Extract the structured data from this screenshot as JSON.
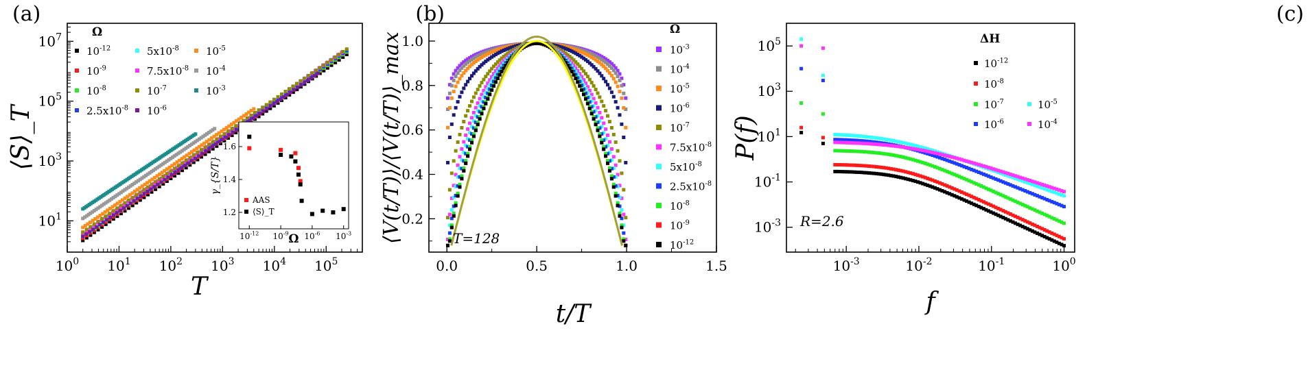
{
  "chart_data": [
    {
      "panel": "(a)",
      "type": "scatter",
      "xscale": "log",
      "yscale": "log",
      "xlabel": "T",
      "ylabel": "⟨S⟩_T",
      "xlim": [
        1,
        500000
      ],
      "ylim": [
        0.9,
        40000000
      ],
      "xticks": [
        1,
        10,
        100,
        1000,
        10000,
        100000
      ],
      "xtick_labels": [
        {
          "b": "10",
          "e": "0"
        },
        {
          "b": "10",
          "e": "1"
        },
        {
          "b": "10",
          "e": "2"
        },
        {
          "b": "10",
          "e": "3"
        },
        {
          "b": "10",
          "e": "4"
        },
        {
          "b": "10",
          "e": "5"
        }
      ],
      "yticks": [
        10,
        1000,
        100000,
        10000000
      ],
      "ytick_labels": [
        {
          "b": "10",
          "e": "1"
        },
        {
          "b": "10",
          "e": "3"
        },
        {
          "b": "10",
          "e": "5"
        },
        {
          "b": "10",
          "e": "7"
        }
      ],
      "legend_title": "Ω",
      "legend_position": "top-left",
      "series": [
        {
          "name": "10^-12",
          "label": {
            "b": "10",
            "e": "-12"
          },
          "color": "#000000",
          "x0": 2,
          "y0": 2.2,
          "slope": 1.22,
          "x_end": 250000
        },
        {
          "name": "10^-9",
          "label": {
            "b": "10",
            "e": "-9"
          },
          "color": "#ff1a1a",
          "x0": 2,
          "y0": 2.6,
          "slope": 1.22,
          "x_end": 250000
        },
        {
          "name": "10^-8",
          "label": {
            "b": "10",
            "e": "-8"
          },
          "color": "#22ee22",
          "x0": 2,
          "y0": 3.0,
          "slope": 1.21,
          "x_end": 250000
        },
        {
          "name": "2.5x10^-8",
          "label": {
            "b": "2.5x10",
            "e": "-8"
          },
          "color": "#1a3cff",
          "x0": 2,
          "y0": 3.3,
          "slope": 1.21,
          "x_end": 250000
        },
        {
          "name": "5x10^-8",
          "label": {
            "b": "5x10",
            "e": "-8"
          },
          "color": "#33ffff",
          "x0": 2,
          "y0": 3.5,
          "slope": 1.22,
          "x_end": 200000
        },
        {
          "name": "7.5x10^-8",
          "label": {
            "b": "7.5x10",
            "e": "-8"
          },
          "color": "#ff33ff",
          "x0": 2,
          "y0": 3.8,
          "slope": 1.21,
          "x_end": 200000
        },
        {
          "name": "10^-7",
          "label": {
            "b": "10",
            "e": "-7"
          },
          "color": "#8c8c00",
          "x0": 2,
          "y0": 4.2,
          "slope": 1.2,
          "x_end": 250000
        },
        {
          "name": "10^-6",
          "label": {
            "b": "10",
            "e": "-6"
          },
          "color": "#7a1a9a",
          "x0": 2,
          "y0": 3.0,
          "slope": 1.2,
          "x_end": 70000
        },
        {
          "name": "10^-5",
          "label": {
            "b": "10",
            "e": "-5"
          },
          "color": "#ff8c1a",
          "x0": 2,
          "y0": 6.0,
          "slope": 1.2,
          "x_end": 4000
        },
        {
          "name": "10^-4",
          "label": {
            "b": "10",
            "e": "-4"
          },
          "color": "#999999",
          "x0": 2,
          "y0": 12.0,
          "slope": 1.18,
          "x_end": 700
        },
        {
          "name": "10^-3",
          "label": {
            "b": "10",
            "e": "-3"
          },
          "color": "#1a8c8c",
          "x0": 2,
          "y0": 25.0,
          "slope": 1.15,
          "x_end": 300
        }
      ],
      "inset": {
        "xlabel": "Ω",
        "ylabel": "γ_{S/T}",
        "xscale": "log",
        "xlim": [
          1e-13,
          0.003
        ],
        "ylim": [
          1.1,
          1.75
        ],
        "xticks": [
          1e-12,
          1e-09,
          1e-06,
          0.001
        ],
        "xtick_labels": [
          {
            "b": "10",
            "e": "-12"
          },
          {
            "b": "10",
            "e": "-9"
          },
          {
            "b": "10",
            "e": "-6"
          },
          {
            "b": "10",
            "e": "-3"
          }
        ],
        "yticks": [
          1.2,
          1.4,
          1.6
        ],
        "ytick_labels": [
          "1.2",
          "1.4",
          "1.6"
        ],
        "series": [
          {
            "name": "AAS",
            "color": "#ff1a1a",
            "x": [
              1e-12,
              1e-09,
              2.5e-08,
              5e-08,
              7.5e-08
            ],
            "y": [
              1.59,
              1.58,
              1.56,
              1.47,
              1.39
            ]
          },
          {
            "name": "⟨S⟩_T",
            "color": "#000000",
            "x": [
              1e-12,
              1e-09,
              1e-08,
              2.5e-08,
              5e-08,
              7.5e-08,
              1e-07,
              1e-06,
              1e-05,
              0.0001,
              0.001
            ],
            "y": [
              1.66,
              1.55,
              1.54,
              1.51,
              1.43,
              1.37,
              1.27,
              1.19,
              1.21,
              1.2,
              1.22
            ]
          }
        ]
      }
    },
    {
      "panel": "(b)",
      "type": "scatter",
      "xlabel": "t/T",
      "ylabel": "⟨V(t/T)⟩/⟨V(t/T)⟩_max",
      "xlim": [
        -0.1,
        1.5
      ],
      "ylim": [
        0.05,
        1.08
      ],
      "xticks": [
        0,
        0.5,
        1,
        1.5
      ],
      "xtick_labels": [
        "0.0",
        "0.5",
        "1.0",
        "1.5"
      ],
      "yticks": [
        0.2,
        0.4,
        0.6,
        0.8,
        1.0
      ],
      "ytick_labels": [
        "0.2",
        "0.4",
        "0.6",
        "0.8",
        "1.0"
      ],
      "annotation": "T=128",
      "legend_title": "Ω",
      "legend_position": "right",
      "series": [
        {
          "name": "10^-3",
          "label": {
            "b": "10",
            "e": "-3"
          },
          "color": "#9a33ff",
          "flatness": 18
        },
        {
          "name": "10^-4",
          "label": {
            "b": "10",
            "e": "-4"
          },
          "color": "#8c8c8c",
          "flatness": 14
        },
        {
          "name": "10^-5",
          "label": {
            "b": "10",
            "e": "-5"
          },
          "color": "#ff8c1a",
          "flatness": 10
        },
        {
          "name": "10^-6",
          "label": {
            "b": "10",
            "e": "-6"
          },
          "color": "#1a1a7a",
          "flatness": 6
        },
        {
          "name": "10^-7",
          "label": {
            "b": "10",
            "e": "-7"
          },
          "color": "#8c8c00",
          "flatness": 3
        },
        {
          "name": "7.5x10^-8",
          "label": {
            "b": "7.5x10",
            "e": "-8"
          },
          "color": "#ff33ff",
          "flatness": 2.2
        },
        {
          "name": "5x10^-8",
          "label": {
            "b": "5x10",
            "e": "-8"
          },
          "color": "#33ffff",
          "flatness": 1.9
        },
        {
          "name": "2.5x10^-8",
          "label": {
            "b": "2.5x10",
            "e": "-8"
          },
          "color": "#1a3cff",
          "flatness": 1.7
        },
        {
          "name": "10^-8",
          "label": {
            "b": "10",
            "e": "-8"
          },
          "color": "#22ee22",
          "flatness": 1.55
        },
        {
          "name": "10^-9",
          "label": {
            "b": "10",
            "e": "-9"
          },
          "color": "#ff1a1a",
          "flatness": 1.5
        },
        {
          "name": "10^-12",
          "label": {
            "b": "10",
            "e": "-12"
          },
          "color": "#000000",
          "flatness": 1.5
        }
      ],
      "fit_curves": [
        {
          "name": "fit-yellow",
          "color": "#ffff00",
          "peak": 1.0
        },
        {
          "name": "fit-olive",
          "color": "#a0a040",
          "peak": 1.02
        }
      ]
    },
    {
      "panel": "(c)",
      "type": "scatter",
      "xscale": "log",
      "yscale": "log",
      "xlabel": "f",
      "ylabel": "P(f)",
      "xlim": [
        0.00015,
        1.4
      ],
      "ylim": [
        8e-05,
        1000000
      ],
      "xticks": [
        0.001,
        0.01,
        0.1,
        1
      ],
      "xtick_labels": [
        {
          "b": "10",
          "e": "-3"
        },
        {
          "b": "10",
          "e": "-2"
        },
        {
          "b": "10",
          "e": "-1"
        },
        {
          "b": "10",
          "e": "0"
        }
      ],
      "yticks": [
        0.001,
        0.1,
        10,
        1000,
        100000
      ],
      "ytick_labels": [
        {
          "b": "10",
          "e": "-3"
        },
        {
          "b": "10",
          "e": "-1"
        },
        {
          "b": "10",
          "e": "1"
        },
        {
          "b": "10",
          "e": "3"
        },
        {
          "b": "10",
          "e": "5"
        }
      ],
      "annotation": "R=2.6",
      "legend_title": "ΔH",
      "legend_position": "top-right",
      "series": [
        {
          "name": "10^-12",
          "label": {
            "b": "10",
            "e": "-12"
          },
          "color": "#000000",
          "plateau": 0.3,
          "fc": 0.006,
          "alpha": 1.48,
          "y_first": [
            15,
            5
          ]
        },
        {
          "name": "10^-8",
          "label": {
            "b": "10",
            "e": "-8"
          },
          "color": "#ff1a1a",
          "plateau": 0.6,
          "fc": 0.006,
          "alpha": 1.48,
          "y_first": [
            25,
            9
          ]
        },
        {
          "name": "10^-7",
          "label": {
            "b": "10",
            "e": "-7"
          },
          "color": "#22ee22",
          "plateau": 2.5,
          "fc": 0.006,
          "alpha": 1.45,
          "y_first": [
            300,
            100
          ]
        },
        {
          "name": "10^-5",
          "label": {
            "b": "10",
            "e": "-5"
          },
          "color": "#33ffff",
          "plateau": 14,
          "fc": 0.004,
          "alpha": 1.15,
          "y_first": [
            200000,
            5000
          ]
        },
        {
          "name": "10^-6",
          "label": {
            "b": "10",
            "e": "-6"
          },
          "color": "#1a3cff",
          "plateau": 8,
          "fc": 0.005,
          "alpha": 1.3,
          "y_first": [
            10000,
            3000
          ]
        },
        {
          "name": "10^-4",
          "label": {
            "b": "10",
            "e": "-4"
          },
          "color": "#ff33ff",
          "plateau": 6,
          "fc": 0.008,
          "alpha": 1.05,
          "y_first": [
            100000,
            80000
          ]
        }
      ]
    }
  ],
  "panel_labels": [
    "(a)",
    "(b)",
    "(c)"
  ]
}
